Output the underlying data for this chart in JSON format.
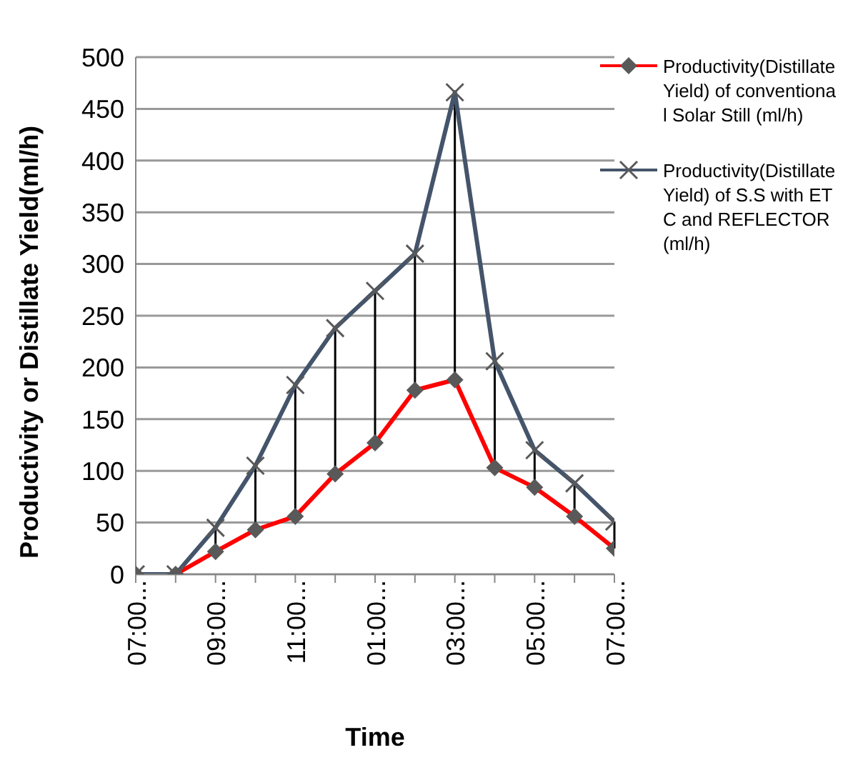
{
  "chart_data": {
    "type": "line",
    "xlabel": "Time",
    "ylabel": "Productivity or Distillate  Yield(ml/h)",
    "categories": [
      "07:00...",
      null,
      "09:00...",
      null,
      "11:00...",
      null,
      "01:00...",
      null,
      "03:00...",
      null,
      "05:00...",
      null,
      "07:00..."
    ],
    "series": [
      {
        "name": "Productivity(Distillate Yield) of conventional Solar Still (ml/h)",
        "color": "#ff0000",
        "marker": "diamond",
        "values": [
          0,
          0,
          22,
          43,
          56,
          97,
          127,
          178,
          188,
          103,
          84,
          56,
          25
        ],
        "errors": [
          null,
          null,
          [
            22,
            45
          ],
          [
            43,
            105
          ],
          [
            56,
            183
          ],
          [
            97,
            238
          ],
          [
            127,
            274
          ],
          [
            178,
            310
          ],
          [
            188,
            466
          ],
          [
            103,
            206
          ],
          [
            84,
            120
          ],
          [
            56,
            88
          ],
          [
            25,
            51
          ]
        ]
      },
      {
        "name": "Productivity(Distillate Yield) of  S.S with ETC and REFLECTOR (ml/h)",
        "color": "#44546a",
        "marker": "cross",
        "values": [
          0,
          0,
          45,
          105,
          183,
          238,
          274,
          310,
          466,
          206,
          120,
          88,
          51
        ]
      }
    ],
    "ylim": [
      0,
      500
    ],
    "yticks": [
      0,
      50,
      100,
      150,
      200,
      250,
      300,
      350,
      400,
      450,
      500
    ],
    "grid": "y",
    "legend": "right",
    "line_style": "solid"
  }
}
